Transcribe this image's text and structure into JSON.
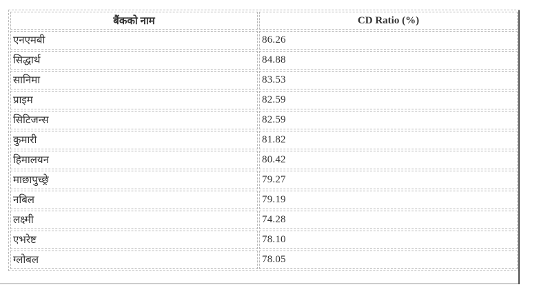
{
  "table": {
    "headers": {
      "bank": "बैंकको नाम",
      "cd_ratio": "CD Ratio (%)"
    },
    "rows": [
      {
        "bank": "एनएमबी",
        "cd_ratio": "86.26"
      },
      {
        "bank": "सिद्धार्थ",
        "cd_ratio": "84.88"
      },
      {
        "bank": "सानिमा",
        "cd_ratio": "83.53"
      },
      {
        "bank": "प्राइम",
        "cd_ratio": "82.59"
      },
      {
        "bank": "सिटिजन्स",
        "cd_ratio": "82.59"
      },
      {
        "bank": "कुमारी",
        "cd_ratio": "81.82"
      },
      {
        "bank": "हिमालयन",
        "cd_ratio": "80.42"
      },
      {
        "bank": "माछापुच्छ्रे",
        "cd_ratio": "79.27"
      },
      {
        "bank": "नबिल",
        "cd_ratio": "79.19"
      },
      {
        "bank": "लक्ष्मी",
        "cd_ratio": "74.28"
      },
      {
        "bank": "एभरेष्ट",
        "cd_ratio": "78.10"
      },
      {
        "bank": "ग्लोबल",
        "cd_ratio": "78.05"
      }
    ]
  },
  "colors": {
    "border": "#b8b8b8",
    "text": "#333333",
    "numbers": "#3d3d3d",
    "dark_rule": "#4d4d4d",
    "light_rule": "#cccccc",
    "background": "#ffffff"
  }
}
